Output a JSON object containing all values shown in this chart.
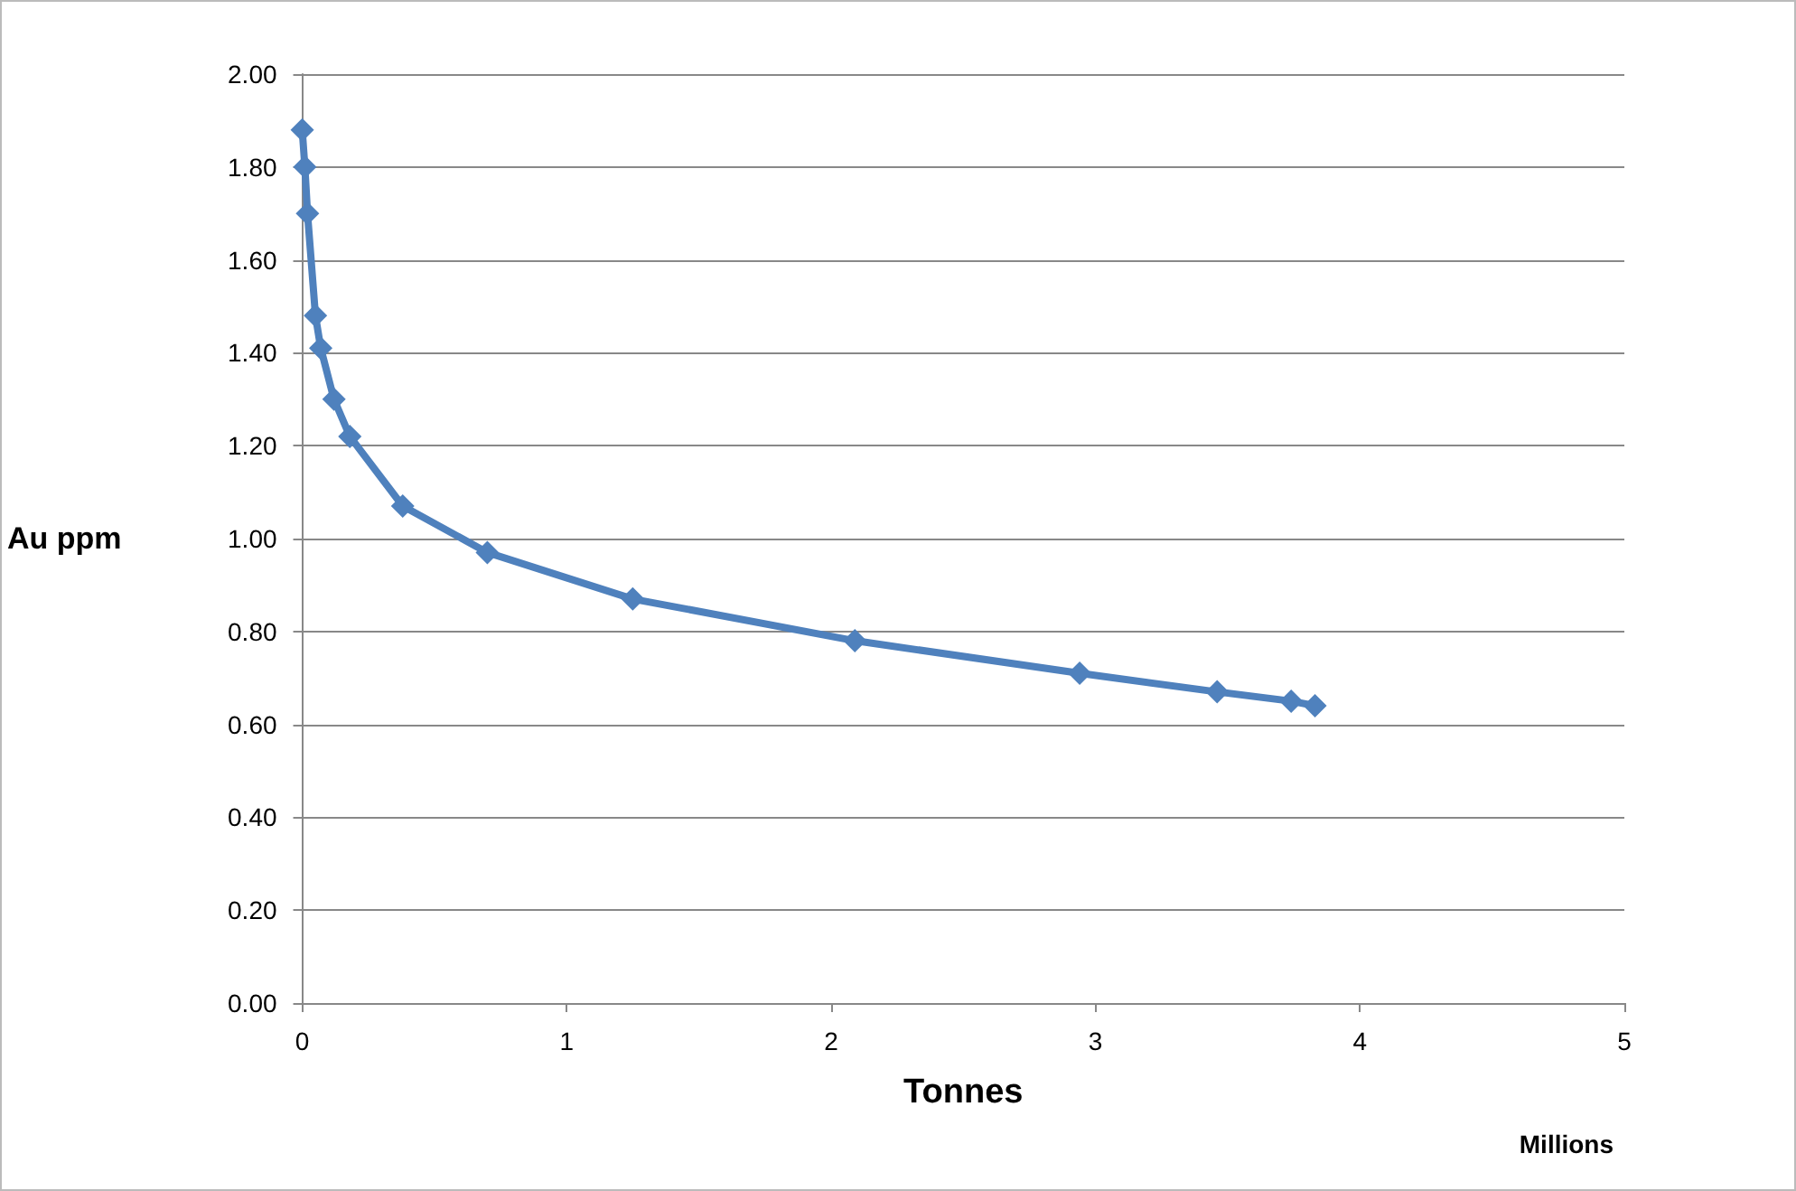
{
  "chart_data": {
    "type": "line",
    "xlabel": "Tonnes",
    "ylabel": "Au ppm",
    "annotations": [
      "Millions"
    ],
    "x": [
      0,
      0.01,
      0.02,
      0.05,
      0.07,
      0.12,
      0.18,
      0.38,
      0.7,
      1.25,
      2.09,
      2.94,
      3.46,
      3.74,
      3.83
    ],
    "series": [
      {
        "color": "#4f81bd",
        "values": [
          1.88,
          1.8,
          1.7,
          1.48,
          1.41,
          1.3,
          1.22,
          1.07,
          0.97,
          0.87,
          0.78,
          0.71,
          0.67,
          0.65,
          0.64
        ]
      }
    ],
    "xlim": [
      0,
      5
    ],
    "xticks": [
      0,
      1,
      2,
      3,
      4,
      5
    ],
    "ylim": [
      0,
      2
    ],
    "yticks": [
      {
        "value": 0,
        "label": "0.00"
      },
      {
        "value": 0.2,
        "label": "0.20"
      },
      {
        "value": 0.4,
        "label": "0.40"
      },
      {
        "value": 0.6,
        "label": "0.60"
      },
      {
        "value": 0.8,
        "label": "0.80"
      },
      {
        "value": 1,
        "label": "1.00"
      },
      {
        "value": 1.2,
        "label": "1.20"
      },
      {
        "value": 1.4,
        "label": "1.40"
      },
      {
        "value": 1.6,
        "label": "1.60"
      },
      {
        "value": 1.8,
        "label": "1.80"
      },
      {
        "value": 2,
        "label": "2.00"
      }
    ],
    "grid": "y",
    "marker": "diamond",
    "line_style": "solid"
  }
}
